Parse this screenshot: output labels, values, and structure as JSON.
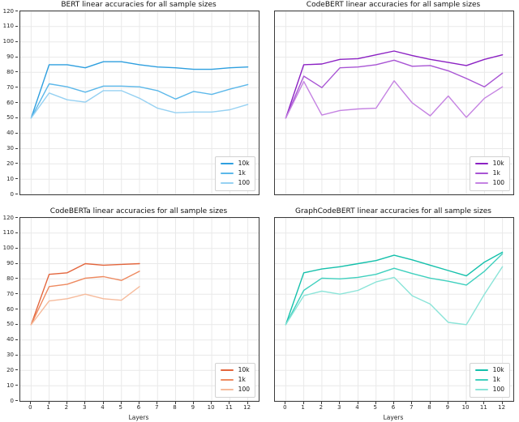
{
  "chart_data": [
    {
      "type": "line",
      "title": "BERT linear accuracies for all sample sizes",
      "xlabel": "",
      "x": [
        0,
        1,
        2,
        3,
        4,
        5,
        6,
        7,
        8,
        9,
        10,
        11,
        12
      ],
      "xticks": [
        0,
        1,
        2,
        3,
        4,
        5,
        6,
        7,
        8,
        9,
        10,
        11,
        12
      ],
      "yticks": [
        0,
        10,
        20,
        30,
        40,
        50,
        60,
        70,
        80,
        90,
        100,
        110,
        120
      ],
      "ylim": [
        0,
        120
      ],
      "grid": true,
      "legend_position": "lower right",
      "series": [
        {
          "name": "10k",
          "color": "#2e9fdf",
          "values": [
            50,
            85,
            85,
            83,
            87,
            87,
            85,
            83.5,
            83,
            82,
            82,
            83,
            83.5
          ]
        },
        {
          "name": "1k",
          "color": "#5cb8ea",
          "values": [
            50,
            72.5,
            70.5,
            67,
            71,
            71,
            70.5,
            68,
            62.5,
            67.5,
            65.5,
            69,
            72
          ]
        },
        {
          "name": "100",
          "color": "#96d1f2",
          "values": [
            50,
            66.5,
            62,
            60.5,
            68,
            68,
            63,
            56.5,
            53.5,
            54,
            54,
            55.5,
            59
          ]
        }
      ]
    },
    {
      "type": "line",
      "title": "CodeBERT linear accuracies for all sample sizes",
      "xlabel": "",
      "x": [
        0,
        1,
        2,
        3,
        4,
        5,
        6,
        7,
        8,
        9,
        10,
        11,
        12
      ],
      "xticks": [
        0,
        1,
        2,
        3,
        4,
        5,
        6,
        7,
        8,
        9,
        10,
        11,
        12
      ],
      "yticks": [
        0,
        10,
        20,
        30,
        40,
        50,
        60,
        70,
        80,
        90,
        100,
        110,
        120
      ],
      "ylim": [
        0,
        120
      ],
      "grid": true,
      "legend_position": "lower right",
      "series": [
        {
          "name": "10k",
          "color": "#8b21c3",
          "values": [
            50,
            85,
            85.5,
            88.5,
            89,
            91.5,
            94,
            91,
            88.5,
            86.5,
            84.5,
            88.5,
            91.5
          ]
        },
        {
          "name": "1k",
          "color": "#a854d4",
          "values": [
            50,
            77.5,
            70,
            83,
            83.5,
            85,
            88,
            84,
            84.5,
            81,
            76,
            70.5,
            79.5
          ]
        },
        {
          "name": "100",
          "color": "#c583e2",
          "values": [
            50,
            74,
            52,
            55,
            56,
            56.5,
            74.5,
            60,
            51.5,
            64.5,
            50.5,
            63,
            70.5
          ]
        }
      ]
    },
    {
      "type": "line",
      "title": "CodeBERTa linear accuracies for all sample sizes",
      "xlabel": "Layers",
      "x": [
        0,
        1,
        2,
        3,
        4,
        5,
        6
      ],
      "xticks": [
        0,
        1,
        2,
        3,
        4,
        5,
        6,
        7,
        8,
        9,
        10,
        11,
        12
      ],
      "yticks": [
        0,
        10,
        20,
        30,
        40,
        50,
        60,
        70,
        80,
        90,
        100,
        110,
        120
      ],
      "ylim": [
        0,
        120
      ],
      "grid": true,
      "legend_position": "lower right",
      "series": [
        {
          "name": "10k",
          "color": "#e3653c",
          "values": [
            50,
            83,
            84,
            90,
            89,
            89.5,
            90
          ]
        },
        {
          "name": "1k",
          "color": "#ee8a60",
          "values": [
            50,
            75,
            76.5,
            80.5,
            81.5,
            79,
            85
          ]
        },
        {
          "name": "100",
          "color": "#f6bb9c",
          "values": [
            50,
            65.5,
            67,
            70,
            67,
            66,
            75
          ]
        }
      ]
    },
    {
      "type": "line",
      "title": "GraphCodeBERT linear accuracies for all sample sizes",
      "xlabel": "Layers",
      "x": [
        0,
        1,
        2,
        3,
        4,
        5,
        6,
        7,
        8,
        9,
        10,
        11,
        12
      ],
      "xticks": [
        0,
        1,
        2,
        3,
        4,
        5,
        6,
        7,
        8,
        9,
        10,
        11,
        12
      ],
      "yticks": [
        0,
        10,
        20,
        30,
        40,
        50,
        60,
        70,
        80,
        90,
        100,
        110,
        120
      ],
      "ylim": [
        0,
        120
      ],
      "grid": true,
      "legend_position": "lower right",
      "series": [
        {
          "name": "10k",
          "color": "#14c0ab",
          "values": [
            50,
            84,
            86.5,
            88,
            90,
            92,
            95.5,
            92.5,
            89,
            85.5,
            82,
            91,
            97.5
          ]
        },
        {
          "name": "1k",
          "color": "#3fd0be",
          "values": [
            50,
            72.5,
            80.5,
            80,
            81,
            83,
            87,
            83.5,
            80.5,
            78.5,
            76,
            85,
            96.5
          ]
        },
        {
          "name": "100",
          "color": "#8ae4d8",
          "values": [
            50,
            69,
            72,
            70,
            72.5,
            78,
            81,
            69,
            63.5,
            51.5,
            50,
            70,
            88
          ]
        }
      ]
    }
  ]
}
